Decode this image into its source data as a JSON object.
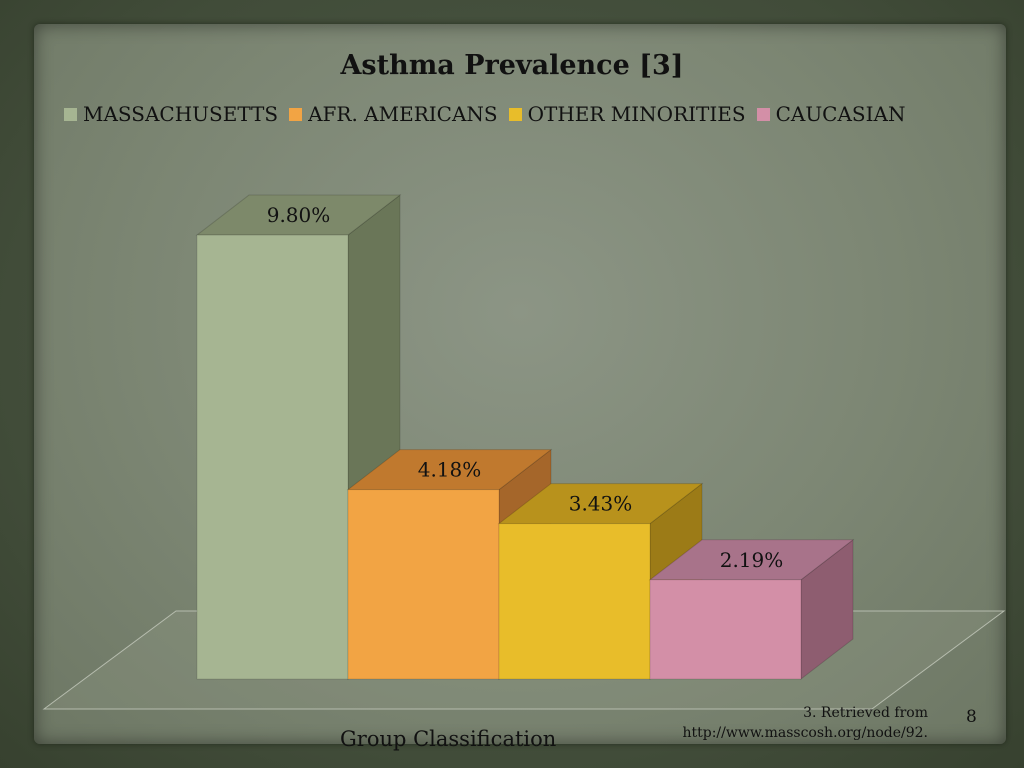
{
  "colors": {
    "massachusetts": "#a6b592",
    "afr_americans": "#f2a444",
    "other_minorities": "#e8bd2a",
    "caucasian": "#d38fa7"
  },
  "footer": {
    "citation_line1": "3.  Retrieved from",
    "citation_line2": "http://www.masscosh.org/node/92.",
    "page_number": "8"
  },
  "chart_data": {
    "type": "bar",
    "title": "Asthma Prevalence [3]",
    "xlabel": "Group Classification",
    "ylabel": "",
    "ylim": [
      0,
      10
    ],
    "legend_position": "top",
    "grid": false,
    "series": [
      {
        "name": "MASSACHUSETTS",
        "value": 9.8,
        "label": "9.80%",
        "color": "#a6b592",
        "top": "#7d896a",
        "side": "#6a7658"
      },
      {
        "name": "AFR. AMERICANS",
        "value": 4.18,
        "label": "4.18%",
        "color": "#f2a444",
        "top": "#c0792e",
        "side": "#a5662a"
      },
      {
        "name": "OTHER MINORITIES",
        "value": 3.43,
        "label": "3.43%",
        "color": "#e8bd2a",
        "top": "#b8921c",
        "side": "#9c7b17"
      },
      {
        "name": "CAUCASIAN",
        "value": 2.19,
        "label": "2.19%",
        "color": "#d38fa7",
        "top": "#a8738a",
        "side": "#8e5d70"
      }
    ]
  }
}
